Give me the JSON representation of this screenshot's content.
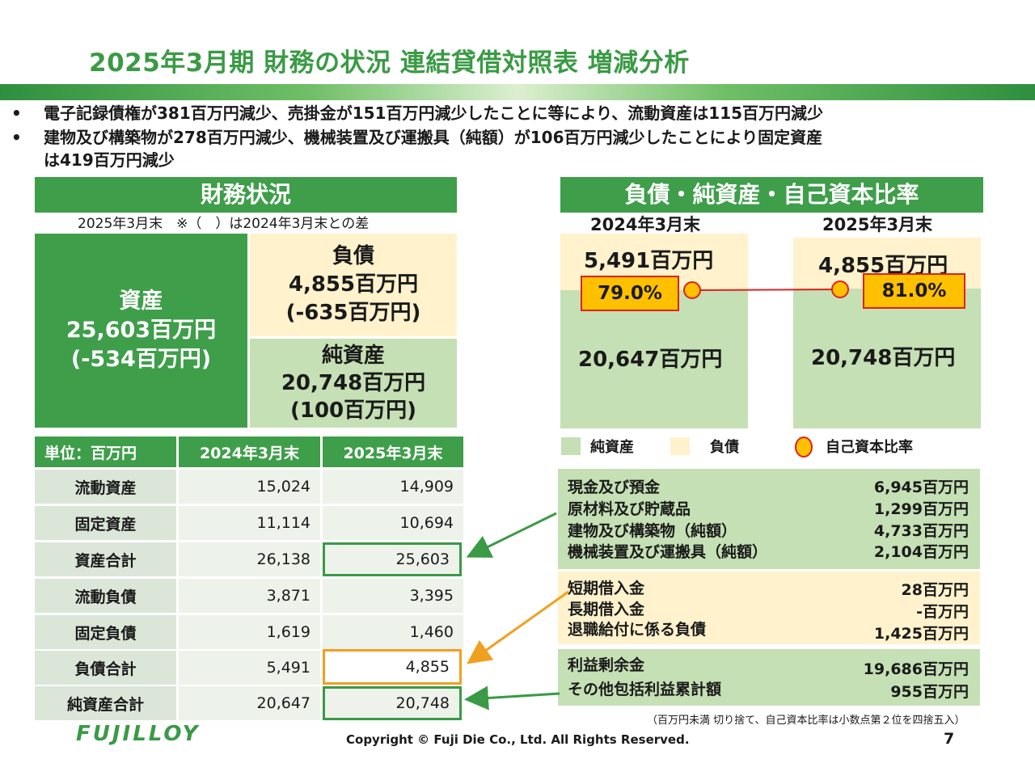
{
  "title": "2025年3月期 財務の状況 連結貸借対照表 増減分析",
  "bullets": [
    "電子記録債権が381百万円減少、売掛金が151百万円減少したことに等により、流動資産は115百万円減少",
    "建物及び構築物が278百万円減少、機械装置及び運搬具（純額）が106百万円減少したことにより固定資産",
    "は419百万円減少"
  ],
  "bullet_mark": "•",
  "financial": {
    "header": "財務状況",
    "note": "2025年3月末　※（　）は2024年3月末との差",
    "assets": {
      "label": "資産",
      "value": "25,603百万円",
      "diff": "(-534百万円)"
    },
    "liabilities": {
      "label": "負債",
      "value": "4,855百万円",
      "diff": "(-635百万円)"
    },
    "net_assets": {
      "label": "純資産",
      "value": "20,748百万円",
      "diff": "(100百万円)"
    }
  },
  "table": {
    "headers": [
      "単位：百万円",
      "2024年3月末",
      "2025年3月末"
    ],
    "rows": [
      {
        "label": "流動資産",
        "v2024": "15,024",
        "v2025": "14,909"
      },
      {
        "label": "固定資産",
        "v2024": "11,114",
        "v2025": "10,694"
      },
      {
        "label": "資産合計",
        "v2024": "26,138",
        "v2025": "25,603"
      },
      {
        "label": "流動負債",
        "v2024": "3,871",
        "v2025": "3,395"
      },
      {
        "label": "固定負債",
        "v2024": "1,619",
        "v2025": "1,460"
      },
      {
        "label": "負債合計",
        "v2024": "5,491",
        "v2025": "4,855"
      },
      {
        "label": "純資産合計",
        "v2024": "20,647",
        "v2025": "20,748"
      }
    ]
  },
  "ratio": {
    "header": "負債・純資産・自己資本比率",
    "col1_label": "2024年3月末",
    "col2_label": "2025年3月末",
    "col1_liab": "5,491百万円",
    "col1_net": "20,647百万円",
    "col1_ratio": "79.0%",
    "col2_liab": "4,855百万円",
    "col2_net": "20,748百万円",
    "col2_ratio": "81.0%",
    "legend": [
      "純資産",
      "負債",
      "自己資本比率"
    ],
    "colors": {
      "net": "#c5e0b4",
      "liab": "#fff2cc",
      "ratio": "#ffc000",
      "ratio_border": "#e02020"
    }
  },
  "info_boxes": [
    {
      "color": "#c5e0b4",
      "items": [
        {
          "label": "現金及び預金",
          "value": "6,945百万円"
        },
        {
          "label": "原材料及び貯蔵品",
          "value": "1,299百万円"
        },
        {
          "label": "建物及び構築物（純額）",
          "value": "4,733百万円"
        },
        {
          "label": "機械装置及び運搬具（純額）",
          "value": "2,104百万円"
        }
      ]
    },
    {
      "color": "#fff2cc",
      "items": [
        {
          "label": "短期借入金",
          "value": "28百万円"
        },
        {
          "label": "長期借入金",
          "value": "-百万円"
        },
        {
          "label": "退職給付に係る負債",
          "value": "1,425百万円"
        }
      ]
    },
    {
      "color": "#c5e0b4",
      "items": [
        {
          "label": "利益剰余金",
          "value": "19,686百万円"
        },
        {
          "label": "その他包括利益累計額",
          "value": "955百万円"
        }
      ]
    }
  ],
  "footnote": "（百万円未満 切り捨て、自己資本比率は小数点第２位を四捨五入）",
  "logo": "FUJILLOY",
  "copyright": "Copyright © Fuji Die Co., Ltd. All Rights Reserved.",
  "page_number": "7"
}
